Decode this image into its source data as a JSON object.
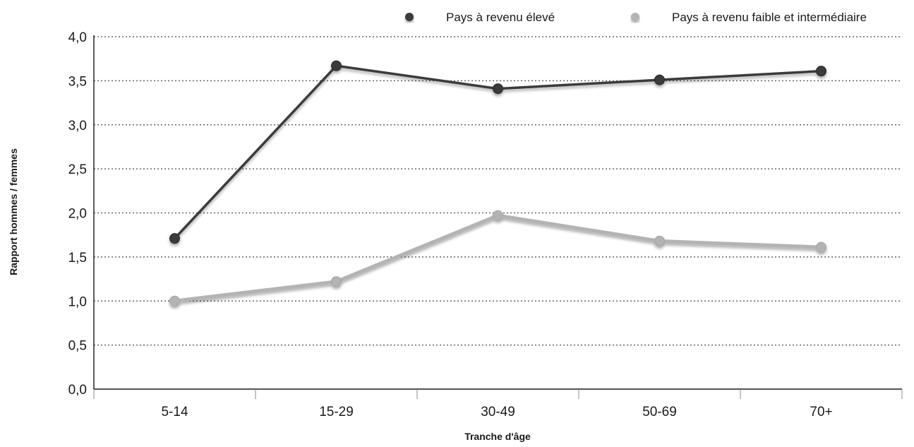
{
  "chart_data": {
    "type": "line",
    "categories": [
      "5-14",
      "15-29",
      "30-49",
      "50-69",
      "70+"
    ],
    "series": [
      {
        "name": "Pays à revenu élevé",
        "values": [
          1.71,
          3.67,
          3.41,
          3.51,
          3.61
        ],
        "color": "#3a3a3a"
      },
      {
        "name": "Pays à revenu faible et intermédiaire",
        "values": [
          1.0,
          1.22,
          1.97,
          1.68,
          1.61
        ],
        "color": "#b3b3b3"
      }
    ],
    "xlabel": "Tranche d'âge",
    "ylabel": "Rapport hommes / femmes",
    "ylim": [
      0,
      4
    ],
    "yticks": [
      "0,0",
      "0,5",
      "1,0",
      "1,5",
      "2,0",
      "2,5",
      "3,0",
      "3,5",
      "4,0"
    ],
    "grid": "horizontal-dotted",
    "legend": "top-right"
  }
}
